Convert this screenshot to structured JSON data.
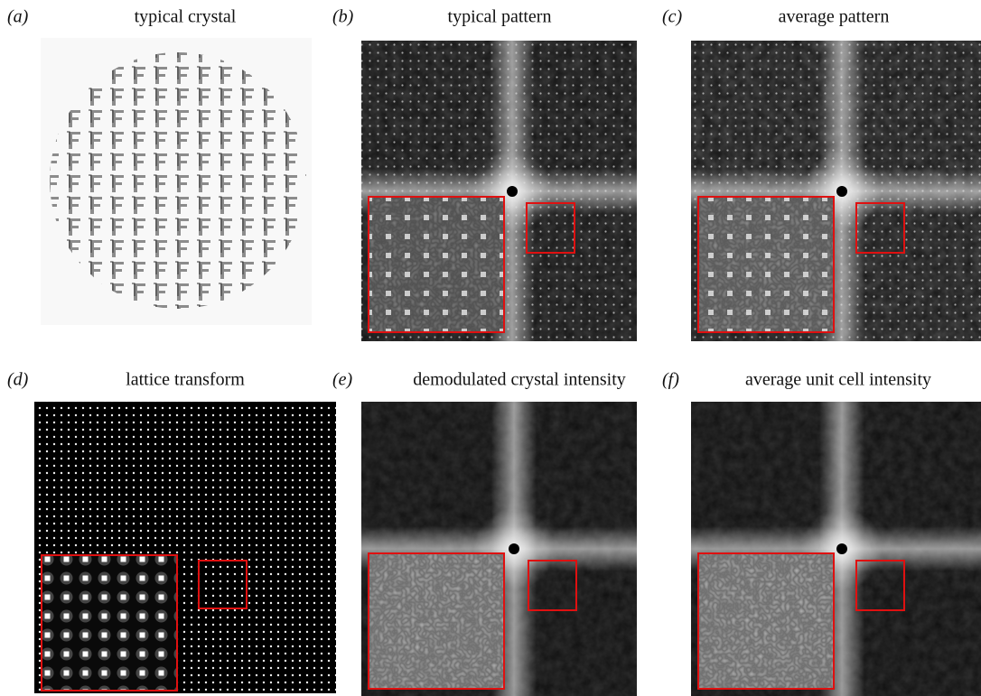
{
  "panels": [
    {
      "label": "(a)",
      "title": "typical crystal"
    },
    {
      "label": "(b)",
      "title": "typical pattern"
    },
    {
      "label": "(c)",
      "title": "average pattern"
    },
    {
      "label": "(d)",
      "title": "lattice transform"
    },
    {
      "label": "(e)",
      "title": "demodulated crystal intensity"
    },
    {
      "label": "(f)",
      "title": "average unit cell intensity"
    }
  ]
}
